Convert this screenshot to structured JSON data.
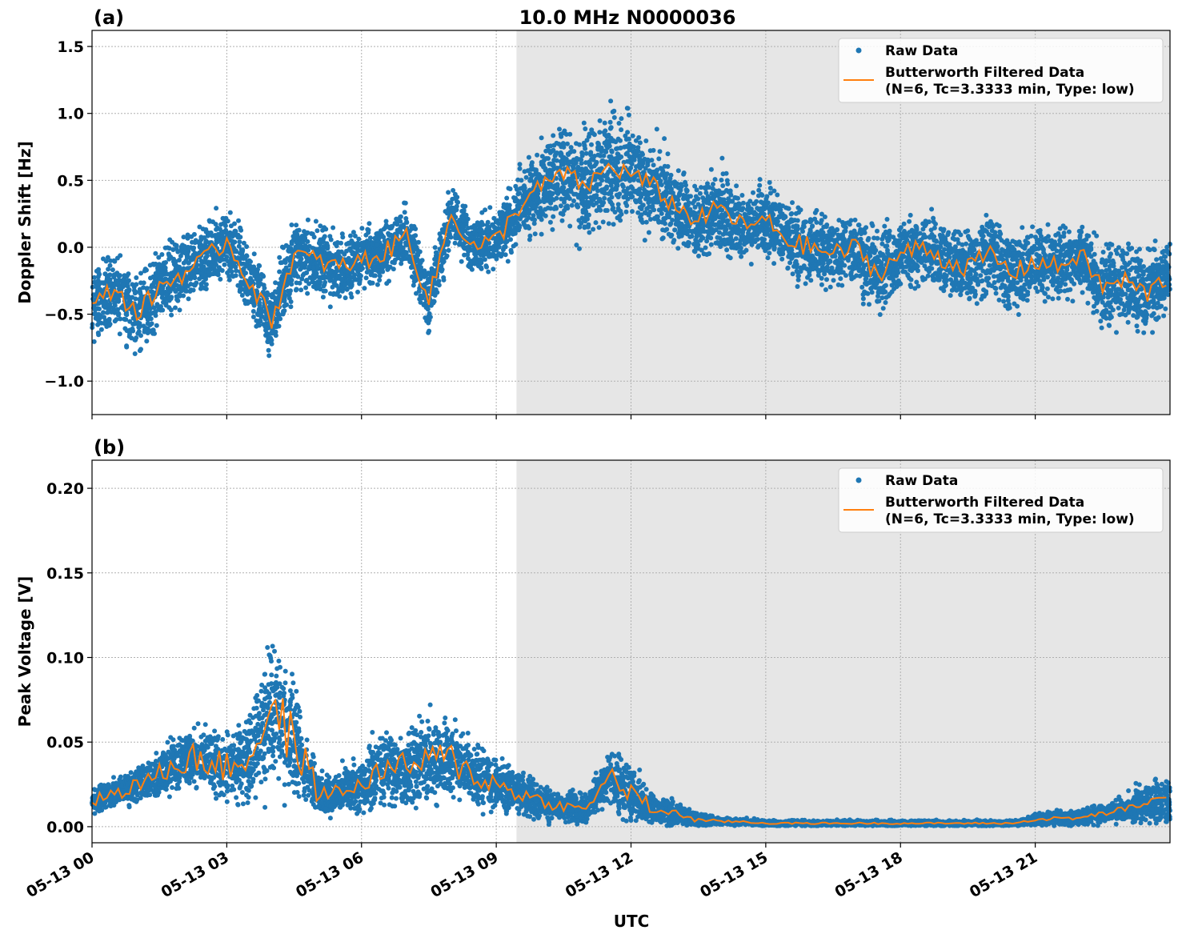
{
  "title": "10.0 MHz N0000036",
  "chart_data": [
    {
      "type": "scatter",
      "panel_label": "(a)",
      "ylabel": "Doppler Shift [Hz]",
      "xlabel": "",
      "ylim": [
        -1.25,
        1.62
      ],
      "yticks": [
        1.5,
        1.0,
        0.5,
        0.0,
        -0.5,
        -1.0
      ],
      "ytick_labels": [
        "1.5",
        "1.0",
        "0.5",
        "0.0",
        "−0.5",
        "−1.0"
      ],
      "grid": true,
      "legend": {
        "position": "top-right",
        "entries": [
          "Raw Data",
          "Butterworth Filtered Data",
          "(N=6, Tc=3.3333 min, Type: low)"
        ]
      },
      "shaded_from": "05-13 09:27",
      "x": [
        "00:00",
        "00:30",
        "01:00",
        "01:30",
        "02:00",
        "02:30",
        "03:00",
        "03:30",
        "04:00",
        "04:30",
        "05:00",
        "05:30",
        "06:00",
        "06:30",
        "07:00",
        "07:30",
        "08:00",
        "08:30",
        "09:00",
        "09:30",
        "10:00",
        "10:30",
        "11:00",
        "11:30",
        "12:00",
        "12:30",
        "13:00",
        "13:30",
        "14:00",
        "14:30",
        "15:00",
        "15:30",
        "16:00",
        "16:30",
        "17:00",
        "17:30",
        "18:00",
        "18:30",
        "19:00",
        "19:30",
        "20:00",
        "20:30",
        "21:00",
        "21:30",
        "22:00",
        "22:30",
        "23:00",
        "23:30",
        "24:00"
      ],
      "series": [
        {
          "name": "Butterworth Filtered Data",
          "color": "#ff7f0e",
          "values": [
            -0.45,
            -0.3,
            -0.5,
            -0.3,
            -0.2,
            -0.1,
            0.05,
            -0.25,
            -0.55,
            -0.05,
            -0.1,
            -0.15,
            -0.1,
            -0.05,
            0.1,
            -0.4,
            0.25,
            0.0,
            0.05,
            0.3,
            0.45,
            0.55,
            0.45,
            0.6,
            0.55,
            0.45,
            0.3,
            0.2,
            0.3,
            0.15,
            0.2,
            0.05,
            0.0,
            -0.05,
            0.0,
            -0.2,
            -0.05,
            0.0,
            -0.1,
            -0.15,
            -0.05,
            -0.2,
            -0.1,
            -0.15,
            -0.05,
            -0.3,
            -0.25,
            -0.35,
            -0.2
          ]
        },
        {
          "name": "Raw Data",
          "color": "#1f77b4",
          "spread": [
            0.3,
            0.3,
            0.35,
            0.3,
            0.3,
            0.3,
            0.3,
            0.3,
            0.35,
            0.3,
            0.3,
            0.3,
            0.25,
            0.25,
            0.25,
            0.3,
            0.25,
            0.25,
            0.25,
            0.3,
            0.35,
            0.4,
            0.45,
            0.5,
            0.5,
            0.4,
            0.35,
            0.3,
            0.35,
            0.3,
            0.3,
            0.3,
            0.3,
            0.3,
            0.3,
            0.35,
            0.3,
            0.3,
            0.3,
            0.35,
            0.3,
            0.35,
            0.3,
            0.3,
            0.3,
            0.35,
            0.35,
            0.35,
            0.3
          ]
        }
      ]
    },
    {
      "type": "scatter",
      "panel_label": "(b)",
      "ylabel": "Peak Voltage [V]",
      "xlabel": "UTC",
      "ylim": [
        -0.0095,
        0.2166
      ],
      "yticks": [
        0.2,
        0.15,
        0.1,
        0.05,
        0.0
      ],
      "ytick_labels": [
        "0.20",
        "0.15",
        "0.10",
        "0.05",
        "0.00"
      ],
      "xtick_labels": [
        "05-13 00",
        "05-13 03",
        "05-13 06",
        "05-13 09",
        "05-13 12",
        "05-13 15",
        "05-13 18",
        "05-13 21"
      ],
      "grid": true,
      "legend": {
        "position": "top-right",
        "entries": [
          "Raw Data",
          "Butterworth Filtered Data",
          "(N=6, Tc=3.3333 min, Type: low)"
        ]
      },
      "shaded_from": "05-13 09:27",
      "x": [
        "00:00",
        "00:30",
        "01:00",
        "01:30",
        "02:00",
        "02:30",
        "03:00",
        "03:30",
        "04:00",
        "04:30",
        "05:00",
        "05:30",
        "06:00",
        "06:30",
        "07:00",
        "07:30",
        "08:00",
        "08:30",
        "09:00",
        "09:30",
        "10:00",
        "10:30",
        "11:00",
        "11:30",
        "12:00",
        "12:30",
        "13:00",
        "13:30",
        "14:00",
        "14:30",
        "15:00",
        "15:30",
        "16:00",
        "16:30",
        "17:00",
        "17:30",
        "18:00",
        "18:30",
        "19:00",
        "19:30",
        "20:00",
        "20:30",
        "21:00",
        "21:30",
        "22:00",
        "22:30",
        "23:00",
        "23:30",
        "24:00"
      ],
      "series": [
        {
          "name": "Butterworth Filtered Data",
          "color": "#ff7f0e",
          "values": [
            0.015,
            0.02,
            0.025,
            0.03,
            0.04,
            0.04,
            0.035,
            0.04,
            0.07,
            0.05,
            0.02,
            0.02,
            0.025,
            0.035,
            0.035,
            0.04,
            0.04,
            0.03,
            0.025,
            0.02,
            0.015,
            0.012,
            0.01,
            0.03,
            0.02,
            0.01,
            0.008,
            0.004,
            0.003,
            0.003,
            0.002,
            0.002,
            0.002,
            0.002,
            0.002,
            0.002,
            0.002,
            0.002,
            0.002,
            0.002,
            0.002,
            0.002,
            0.004,
            0.005,
            0.005,
            0.008,
            0.01,
            0.015,
            0.015
          ]
        },
        {
          "name": "Raw Data",
          "color": "#1f77b4",
          "spread": [
            0.008,
            0.01,
            0.012,
            0.015,
            0.02,
            0.02,
            0.02,
            0.03,
            0.05,
            0.035,
            0.015,
            0.015,
            0.02,
            0.025,
            0.025,
            0.03,
            0.025,
            0.02,
            0.018,
            0.015,
            0.012,
            0.01,
            0.01,
            0.02,
            0.02,
            0.01,
            0.008,
            0.004,
            0.003,
            0.002,
            0.002,
            0.002,
            0.002,
            0.002,
            0.002,
            0.002,
            0.002,
            0.002,
            0.002,
            0.002,
            0.002,
            0.002,
            0.004,
            0.005,
            0.005,
            0.007,
            0.008,
            0.015,
            0.015
          ]
        }
      ]
    }
  ]
}
